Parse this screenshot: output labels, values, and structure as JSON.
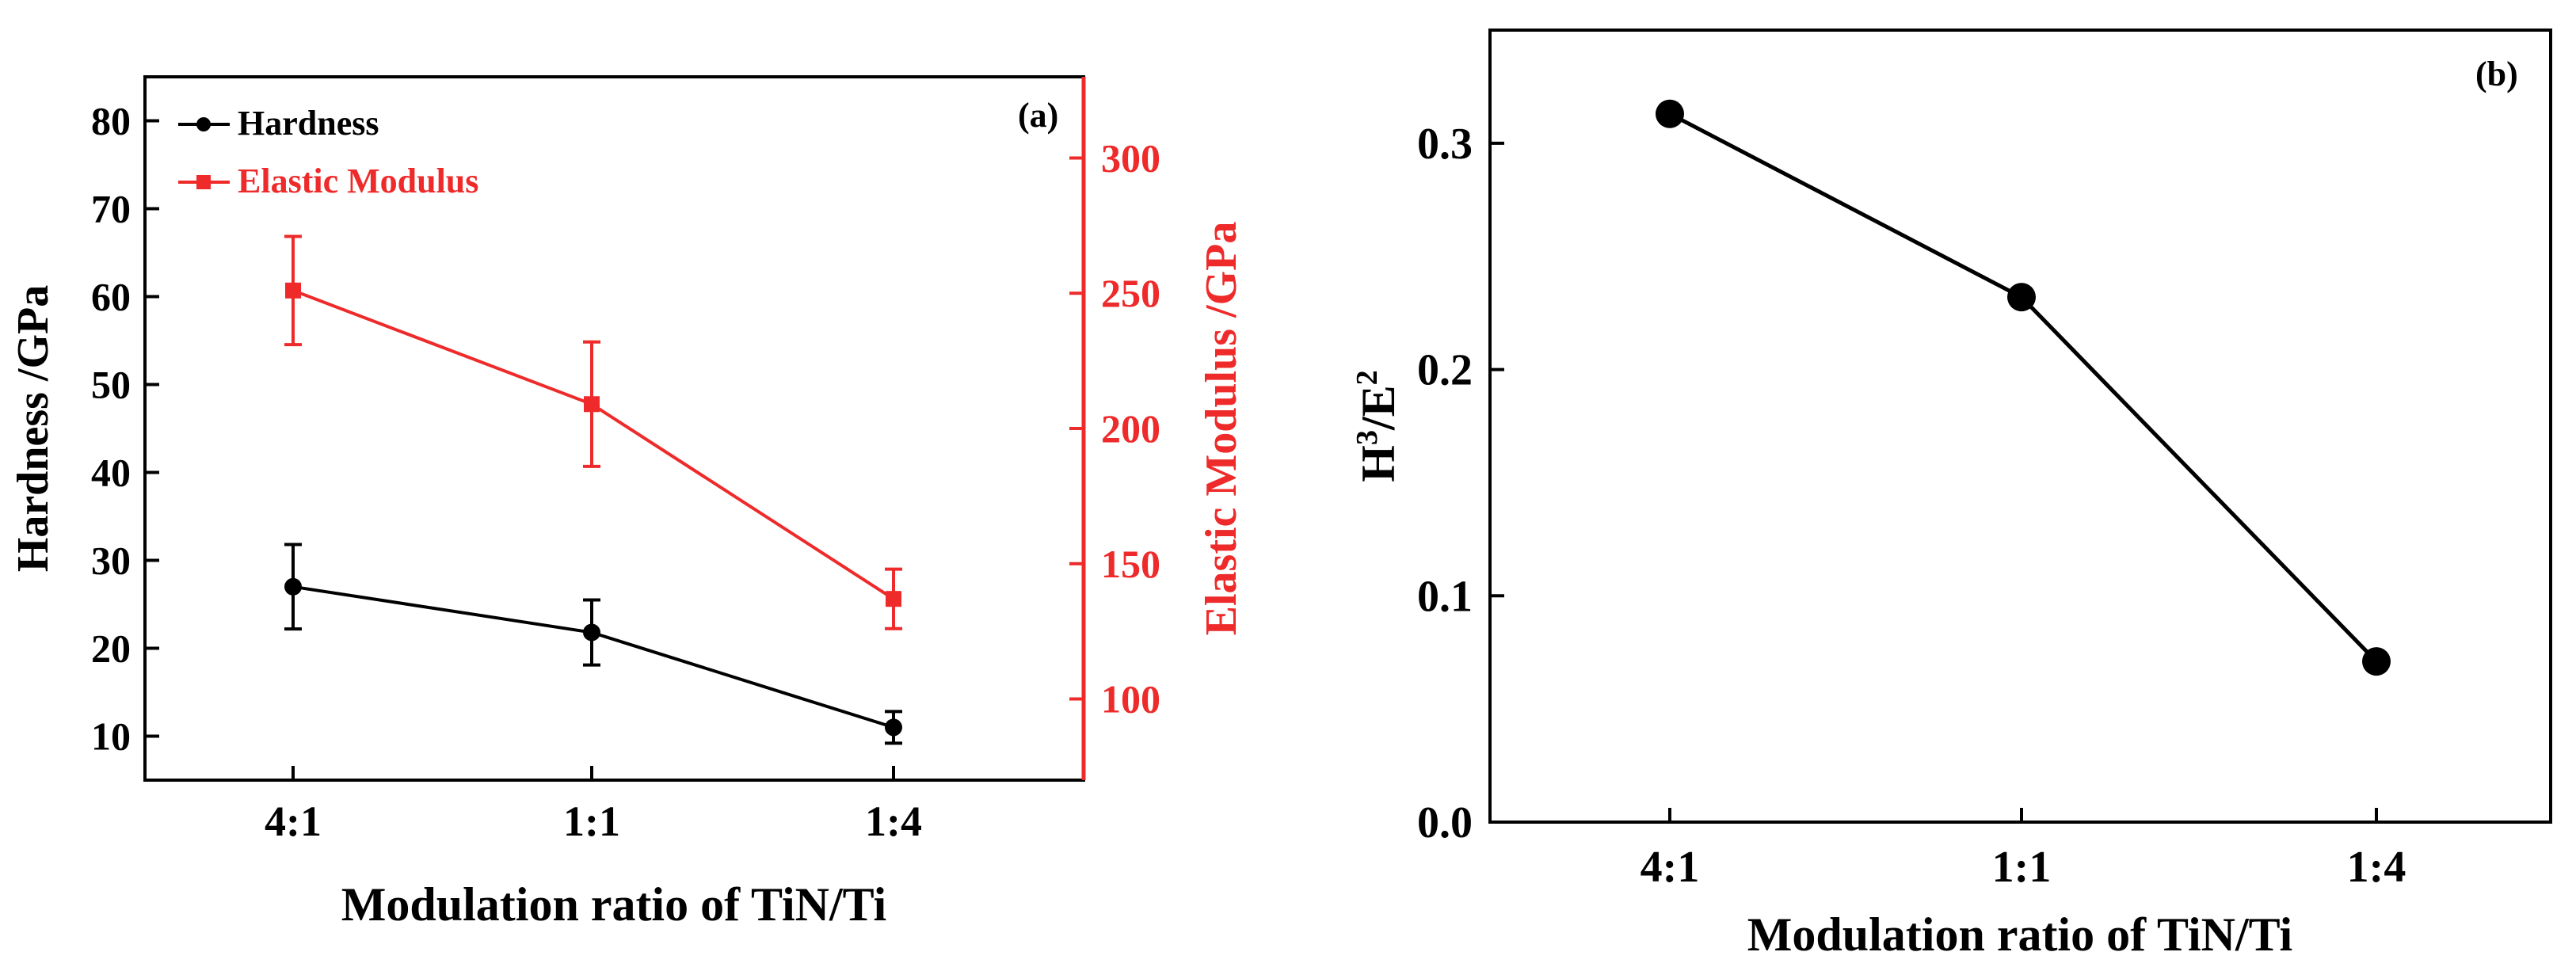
{
  "colors": {
    "hardness": "#000000",
    "modulus": "#ee2a2a",
    "axis": "#000000"
  },
  "chart_data": [
    {
      "panel": "(a)",
      "type": "line",
      "categories": [
        "4:1",
        "1:1",
        "1:4"
      ],
      "xlabel": "Modulation ratio of TiN/Ti",
      "ylabel": "Hardness /GPa",
      "y2label": "Elastic Modulus /GPa",
      "ylim": [
        5,
        85
      ],
      "y2lim": [
        70,
        330
      ],
      "yticks": [
        10,
        20,
        30,
        40,
        50,
        60,
        70,
        80
      ],
      "y2ticks": [
        100,
        150,
        200,
        250,
        300
      ],
      "legend_position": "top-left",
      "series": [
        {
          "name": "Hardness",
          "axis": "left",
          "marker": "circle",
          "values": [
            27,
            21.8,
            11
          ],
          "errors": [
            4.8,
            3.7,
            1.8
          ]
        },
        {
          "name": "Elastic Modulus",
          "axis": "right",
          "marker": "square",
          "values": [
            251,
            209,
            137
          ],
          "errors": [
            20,
            23,
            11
          ]
        }
      ]
    },
    {
      "panel": "(b)",
      "type": "line",
      "categories": [
        "4:1",
        "1:1",
        "1:4"
      ],
      "xlabel": "Modulation ratio of TiN/Ti",
      "ylabel_base1": "H",
      "ylabel_exp1": "3",
      "ylabel_base2": "/E",
      "ylabel_exp2": "2",
      "ylim": [
        0,
        0.35
      ],
      "yticks": [
        "0.0",
        "0.1",
        "0.2",
        "0.3"
      ],
      "series": [
        {
          "name": "H3/E2",
          "marker": "circle",
          "values": [
            0.313,
            0.232,
            0.071
          ]
        }
      ]
    }
  ]
}
